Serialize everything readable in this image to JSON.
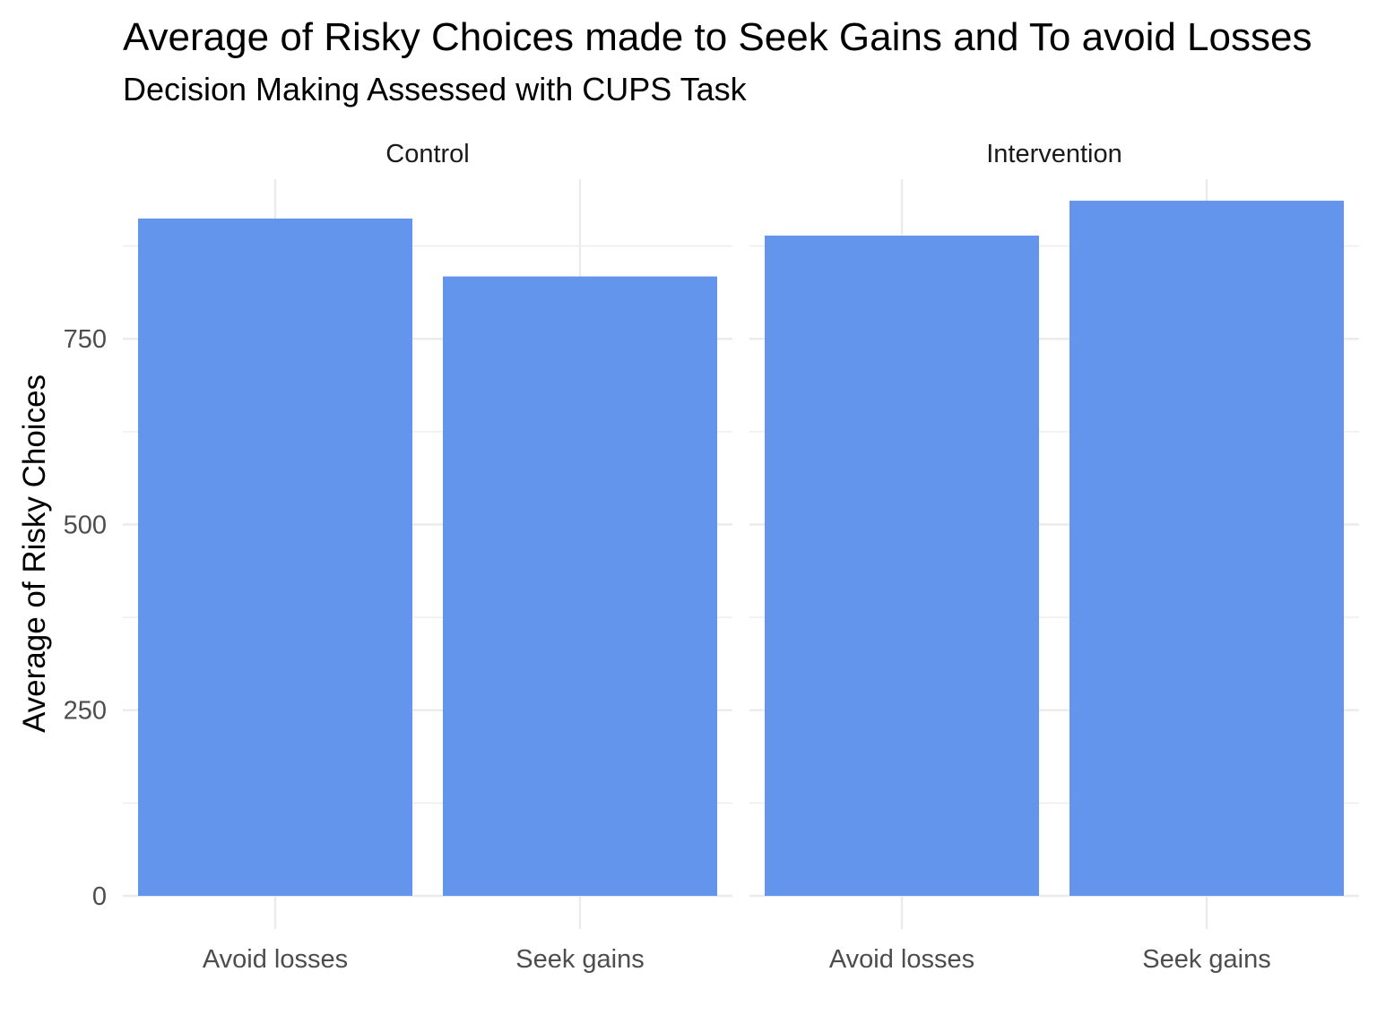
{
  "chart_data": {
    "type": "bar",
    "title": "Average of Risky Choices made to Seek Gains and To avoid Losses",
    "subtitle": "Decision Making Assessed with CUPS Task",
    "ylabel": "Average of Risky Choices",
    "xlabel": "",
    "ylim": [
      0,
      965
    ],
    "y_ticks": [
      0,
      250,
      500,
      750
    ],
    "y_tick_labels": [
      "0",
      "250",
      "500",
      "750"
    ],
    "categories": [
      "Avoid losses",
      "Seek gains"
    ],
    "bar_color": "#6495ED",
    "grid": true,
    "panels": [
      {
        "name": "Control",
        "values": [
          912,
          834
        ]
      },
      {
        "name": "Intervention",
        "values": [
          889,
          936
        ]
      }
    ]
  }
}
